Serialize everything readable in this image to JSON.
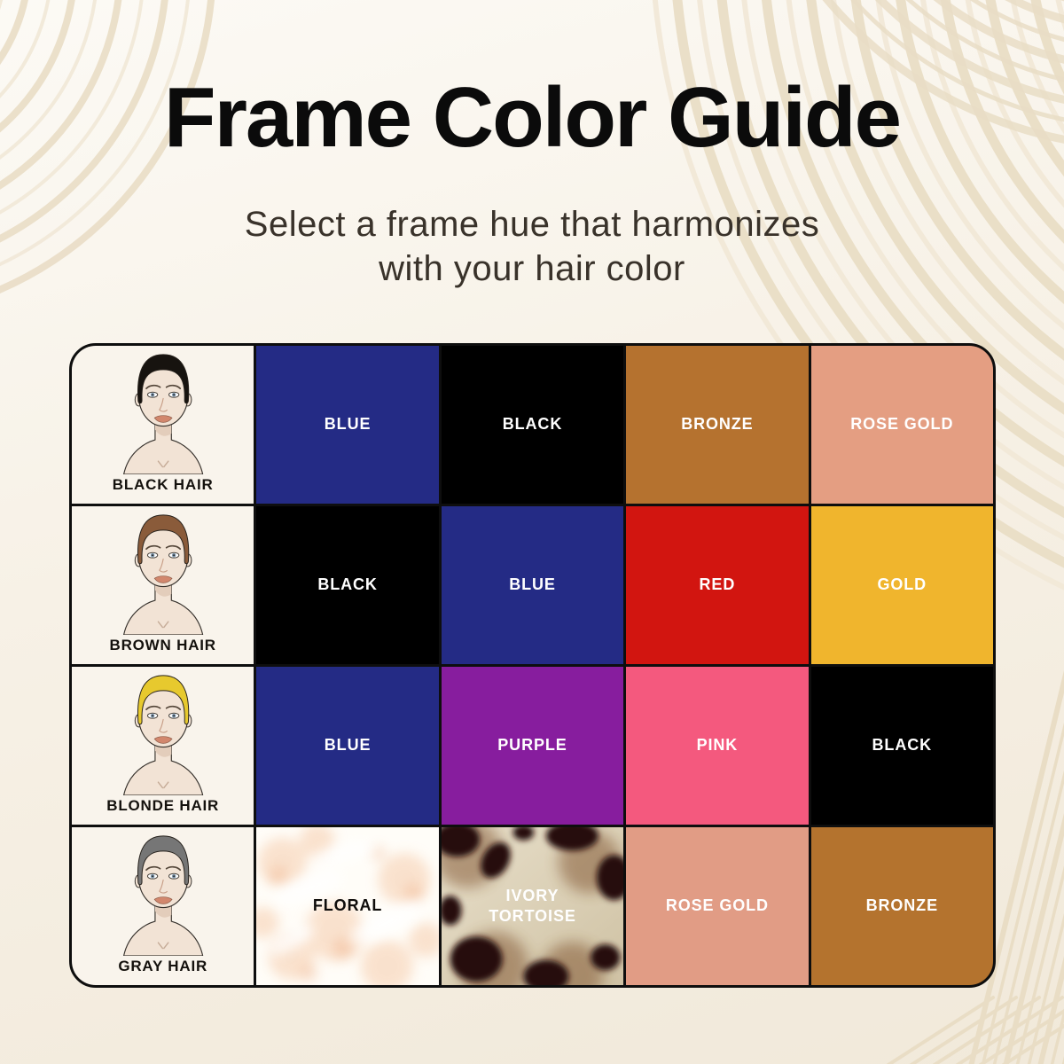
{
  "page": {
    "title": "Frame Color Guide",
    "subtitle_line1": "Select a frame hue that harmonizes",
    "subtitle_line2": "with your hair color"
  },
  "colors": {
    "background": "#f6f0e4",
    "swirl_dark": "#e9ddc5",
    "swirl_light": "#f1e8d7",
    "table_border": "#0e0e0e",
    "face_cell_background": "#f9f4ec",
    "title": "#0b0b0b",
    "subtitle": "#39322a"
  },
  "table": {
    "rows": [
      {
        "hair_label": "BLACK HAIR",
        "hair_color": "#17130f",
        "swatches": [
          {
            "label": "BLUE",
            "color": "#242b85",
            "text_color": "#ffffff",
            "texture": "solid"
          },
          {
            "label": "BLACK",
            "color": "#000000",
            "text_color": "#ffffff",
            "texture": "solid"
          },
          {
            "label": "BRONZE",
            "color": "#b5722f",
            "text_color": "#ffffff",
            "texture": "solid"
          },
          {
            "label": "ROSE GOLD",
            "color": "#e49e82",
            "text_color": "#ffffff",
            "texture": "solid"
          }
        ]
      },
      {
        "hair_label": "BROWN HAIR",
        "hair_color": "#8a5b3a",
        "swatches": [
          {
            "label": "BLACK",
            "color": "#000000",
            "text_color": "#ffffff",
            "texture": "solid"
          },
          {
            "label": "BLUE",
            "color": "#242b85",
            "text_color": "#ffffff",
            "texture": "solid"
          },
          {
            "label": "RED",
            "color": "#d21510",
            "text_color": "#ffffff",
            "texture": "solid"
          },
          {
            "label": "GOLD",
            "color": "#f0b52d",
            "text_color": "#ffffff",
            "texture": "solid"
          }
        ]
      },
      {
        "hair_label": "BLONDE HAIR",
        "hair_color": "#e7c92e",
        "swatches": [
          {
            "label": "BLUE",
            "color": "#242b85",
            "text_color": "#ffffff",
            "texture": "solid"
          },
          {
            "label": "PURPLE",
            "color": "#871d9e",
            "text_color": "#ffffff",
            "texture": "solid"
          },
          {
            "label": "PINK",
            "color": "#f4597e",
            "text_color": "#ffffff",
            "texture": "solid"
          },
          {
            "label": "BLACK",
            "color": "#000000",
            "text_color": "#ffffff",
            "texture": "solid"
          }
        ]
      },
      {
        "hair_label": "GRAY HAIR",
        "hair_color": "#767676",
        "swatches": [
          {
            "label": "FLORAL",
            "color": "#fdf9f3",
            "text_color": "#0f0d0b",
            "texture": "floral"
          },
          {
            "label": "IVORY TORTOISE",
            "color": "#d9cfb6",
            "text_color": "#ffffff",
            "texture": "tortoise"
          },
          {
            "label": "ROSE GOLD",
            "color": "#e19c85",
            "text_color": "#ffffff",
            "texture": "solid"
          },
          {
            "label": "BRONZE",
            "color": "#b4732e",
            "text_color": "#ffffff",
            "texture": "solid"
          }
        ]
      }
    ]
  }
}
